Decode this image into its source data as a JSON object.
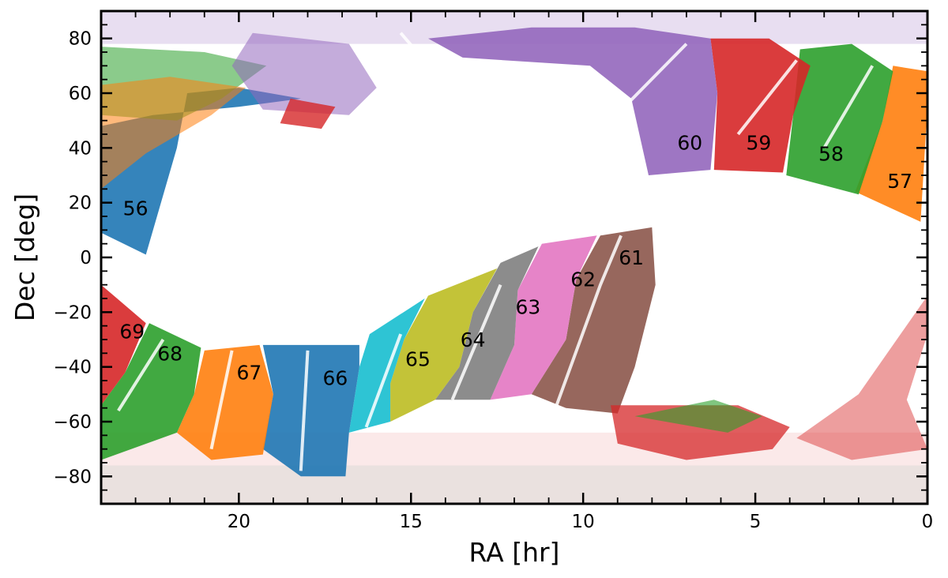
{
  "chart_data": {
    "type": "scatter",
    "title": "",
    "xlabel": "RA [hr]",
    "ylabel": "Dec [deg]",
    "xlim": [
      24,
      0
    ],
    "ylim": [
      -90,
      90
    ],
    "x_ticks": [
      20,
      15,
      10,
      5,
      0
    ],
    "y_ticks": [
      80,
      60,
      40,
      20,
      0,
      -20,
      -40,
      -60,
      -80
    ],
    "x_tick_labels": [
      "20",
      "15",
      "10",
      "5",
      "0"
    ],
    "y_tick_labels": [
      "80",
      "60",
      "40",
      "20",
      "0",
      "−20",
      "−40",
      "−60",
      "−80"
    ],
    "grid": false,
    "legend": "none",
    "series": [
      {
        "name": "56",
        "label_ra": 23.0,
        "label_dec": 18,
        "color": "#1f77b4"
      },
      {
        "name": "57",
        "label_ra": 0.8,
        "label_dec": 28,
        "color": "#ff7f0e"
      },
      {
        "name": "58",
        "label_ra": 2.8,
        "label_dec": 38,
        "color": "#2ca02c"
      },
      {
        "name": "59",
        "label_ra": 4.9,
        "label_dec": 42,
        "color": "#d62728"
      },
      {
        "name": "60",
        "label_ra": 6.9,
        "label_dec": 42,
        "color": "#9467bd"
      },
      {
        "name": "61",
        "label_ra": 8.6,
        "label_dec": 0,
        "color": "#8c564b"
      },
      {
        "name": "62",
        "label_ra": 10.0,
        "label_dec": -8,
        "color": "#e377c2"
      },
      {
        "name": "63",
        "label_ra": 11.6,
        "label_dec": -18,
        "color": "#7f7f7f"
      },
      {
        "name": "64",
        "label_ra": 13.2,
        "label_dec": -30,
        "color": "#bcbd22"
      },
      {
        "name": "65",
        "label_ra": 14.8,
        "label_dec": -37,
        "color": "#17becf"
      },
      {
        "name": "66",
        "label_ra": 17.2,
        "label_dec": -44,
        "color": "#1f77b4"
      },
      {
        "name": "67",
        "label_ra": 19.7,
        "label_dec": -42,
        "color": "#ff7f0e"
      },
      {
        "name": "68",
        "label_ra": 22.0,
        "label_dec": -35,
        "color": "#2ca02c"
      },
      {
        "name": "69",
        "label_ra": 23.1,
        "label_dec": -27,
        "color": "#d62728"
      }
    ]
  }
}
